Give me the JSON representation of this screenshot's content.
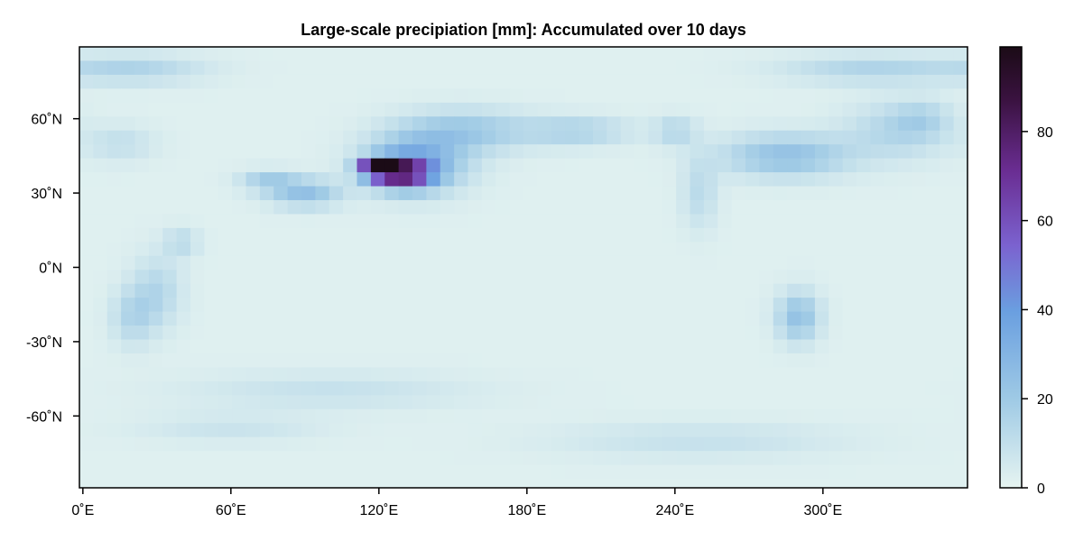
{
  "chart_data": {
    "type": "heatmap",
    "title": "Large-scale precipiation [mm]: Accumulated over 10 days",
    "xlabel": "",
    "ylabel": "",
    "x_ticks": [
      "0˚E",
      "60˚E",
      "120˚E",
      "180˚E",
      "240˚E",
      "300˚E"
    ],
    "x_tick_values": [
      0,
      60,
      120,
      180,
      240,
      300
    ],
    "y_ticks": [
      "60˚N",
      "30˚N",
      "0˚N",
      "-30˚N",
      "-60˚N"
    ],
    "y_tick_values": [
      60,
      30,
      0,
      -30,
      -60
    ],
    "x_range": [
      -1.4,
      358.6
    ],
    "y_range": [
      -89,
      89
    ],
    "grid_resolution_deg": 5.625,
    "colorbar": {
      "ticks": [
        "0",
        "20",
        "40",
        "60",
        "80"
      ],
      "tick_values": [
        0,
        20,
        40,
        60,
        80
      ],
      "range": [
        0,
        99
      ],
      "colors": [
        "#e6f4f1",
        "#9fcae5",
        "#6a9fe0",
        "#7b62cf",
        "#6a2d92",
        "#3a1240",
        "#1b0b16"
      ],
      "stops": [
        0,
        0.2,
        0.4,
        0.55,
        0.72,
        0.88,
        1
      ]
    },
    "background_value": 2,
    "features": [
      {
        "lon": 120,
        "lat": 40,
        "peak": 99,
        "sx": 5,
        "sy": 2.5
      },
      {
        "lon": 130,
        "lat": 38,
        "peak": 60,
        "sx": 8,
        "sy": 4
      },
      {
        "lon": 135,
        "lat": 42,
        "peak": 30,
        "sx": 14,
        "sy": 8
      },
      {
        "lon": 155,
        "lat": 55,
        "peak": 18,
        "sx": 18,
        "sy": 6
      },
      {
        "lon": 90,
        "lat": 30,
        "peak": 22,
        "sx": 10,
        "sy": 4
      },
      {
        "lon": 75,
        "lat": 35,
        "peak": 15,
        "sx": 8,
        "sy": 3
      },
      {
        "lon": 285,
        "lat": 45,
        "peak": 22,
        "sx": 18,
        "sy": 6
      },
      {
        "lon": 330,
        "lat": 55,
        "peak": 12,
        "sx": 15,
        "sy": 8
      },
      {
        "lon": 200,
        "lat": 55,
        "peak": 14,
        "sx": 15,
        "sy": 4
      },
      {
        "lon": 240,
        "lat": 55,
        "peak": 12,
        "sx": 6,
        "sy": 4
      },
      {
        "lon": 20,
        "lat": 80,
        "peak": 13,
        "sx": 20,
        "sy": 4
      },
      {
        "lon": 320,
        "lat": 80,
        "peak": 13,
        "sx": 25,
        "sy": 4
      },
      {
        "lon": 290,
        "lat": -20,
        "peak": 22,
        "sx": 6,
        "sy": 7
      },
      {
        "lon": 30,
        "lat": -10,
        "peak": 12,
        "sx": 7,
        "sy": 10
      },
      {
        "lon": 20,
        "lat": -20,
        "peak": 12,
        "sx": 6,
        "sy": 8
      },
      {
        "lon": 40,
        "lat": 10,
        "peak": 10,
        "sx": 5,
        "sy": 4
      },
      {
        "lon": 250,
        "lat": 30,
        "peak": 10,
        "sx": 5,
        "sy": 10
      },
      {
        "lon": 100,
        "lat": -50,
        "peak": 7,
        "sx": 40,
        "sy": 5
      },
      {
        "lon": 250,
        "lat": -70,
        "peak": 7,
        "sx": 40,
        "sy": 5
      },
      {
        "lon": 60,
        "lat": -65,
        "peak": 6,
        "sx": 25,
        "sy": 4
      },
      {
        "lon": 15,
        "lat": 50,
        "peak": 8,
        "sx": 10,
        "sy": 5
      },
      {
        "lon": 340,
        "lat": 60,
        "peak": 9,
        "sx": 8,
        "sy": 5
      }
    ]
  }
}
